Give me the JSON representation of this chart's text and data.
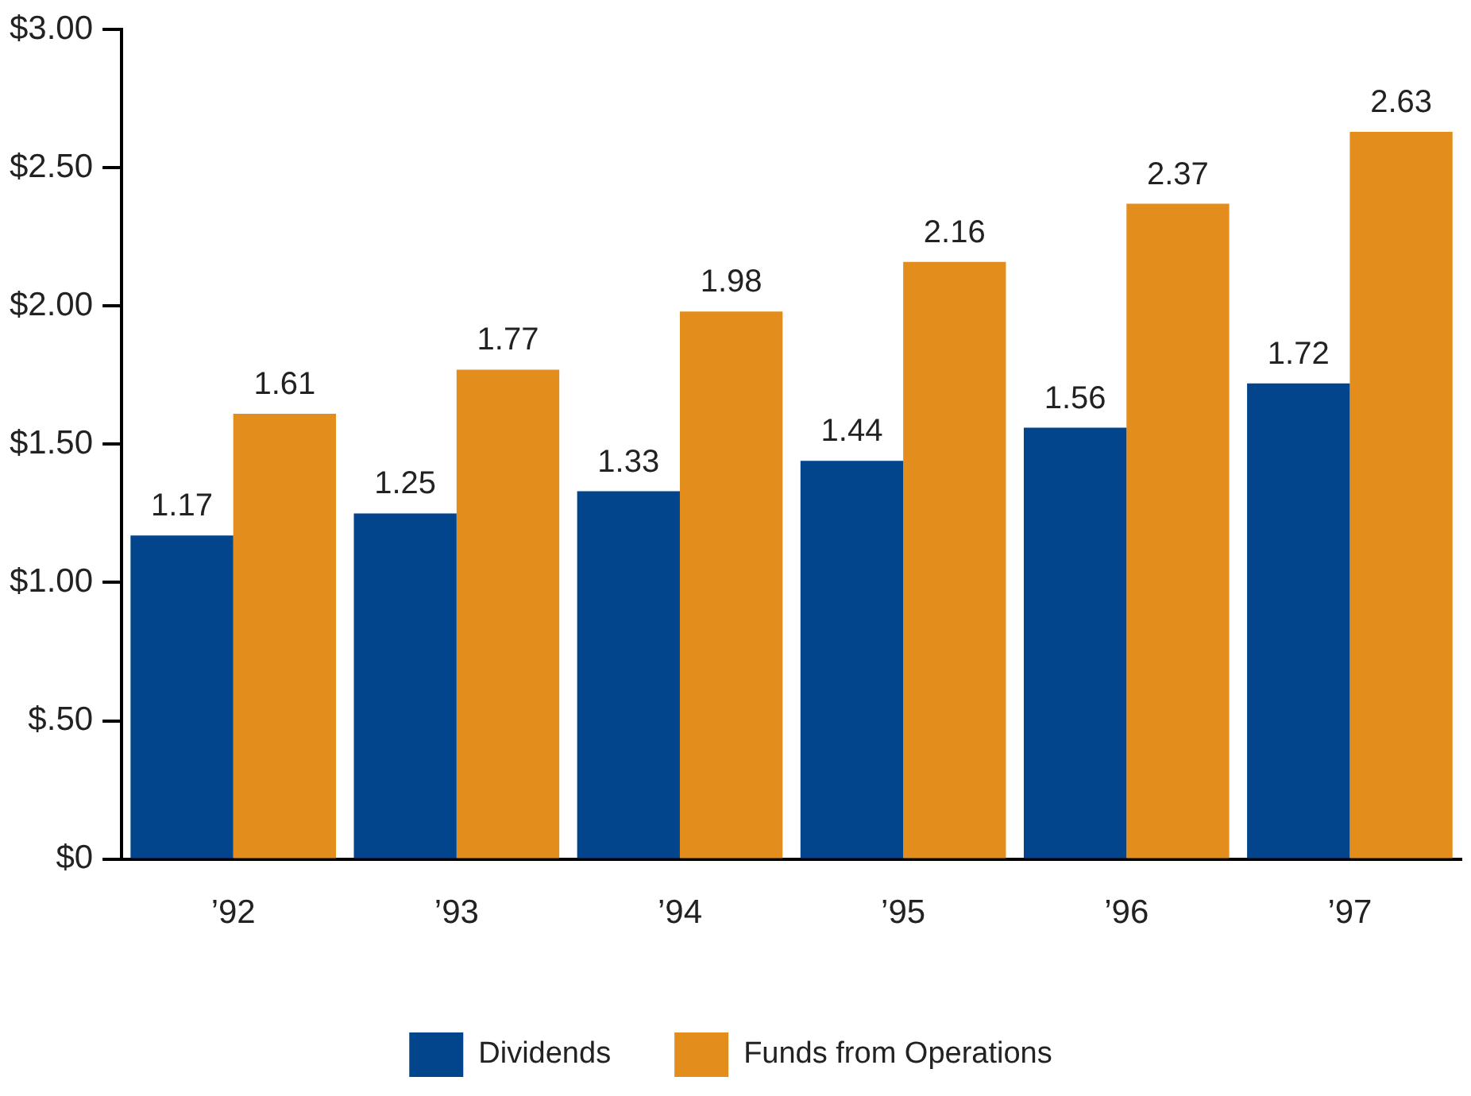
{
  "chart_data": {
    "type": "bar",
    "categories": [
      "’92",
      "’93",
      "’94",
      "’95",
      "’96",
      "’97"
    ],
    "series": [
      {
        "name": "Dividends",
        "color": "#02458c",
        "values": [
          1.17,
          1.25,
          1.33,
          1.44,
          1.56,
          1.72
        ]
      },
      {
        "name": "Funds from Operations",
        "color": "#e38d1c",
        "values": [
          1.61,
          1.77,
          1.98,
          2.16,
          2.37,
          2.63
        ]
      }
    ],
    "ylim": [
      0,
      3
    ],
    "yticks": [
      {
        "value": 0,
        "label": "$0"
      },
      {
        "value": 0.5,
        "label": "$.50"
      },
      {
        "value": 1,
        "label": "$1.00"
      },
      {
        "value": 1.5,
        "label": "$1.50"
      },
      {
        "value": 2,
        "label": "$2.00"
      },
      {
        "value": 2.5,
        "label": "$2.50"
      },
      {
        "value": 3,
        "label": "$3.00"
      }
    ],
    "data_labels": true,
    "grid": false,
    "legend": "bottom"
  }
}
